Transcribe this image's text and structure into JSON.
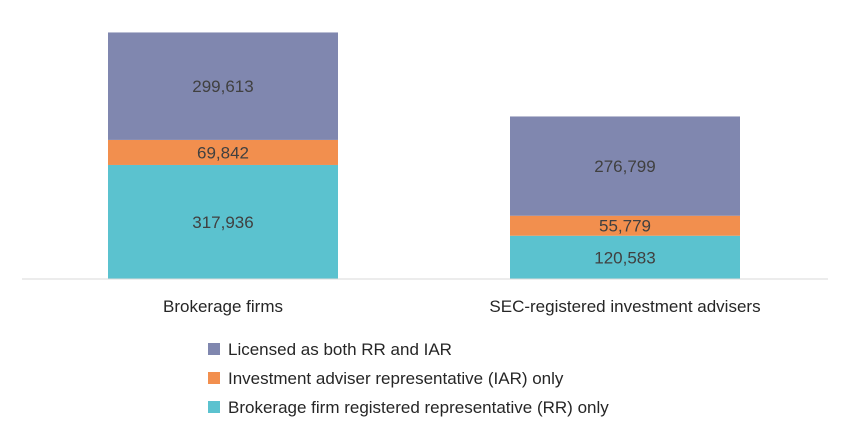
{
  "chart_data": {
    "type": "bar",
    "stacked": true,
    "categories": [
      "Brokerage firms",
      "SEC-registered investment advisers"
    ],
    "series": [
      {
        "name": "Brokerage firm registered representative (RR) only",
        "values": [
          317936,
          120583
        ],
        "color": "#5BC2CF",
        "labels": [
          "317,936",
          "120,583"
        ]
      },
      {
        "name": "Investment adviser representative (IAR) only",
        "values": [
          69842,
          55779
        ],
        "color": "#F28F4E",
        "labels": [
          "69,842",
          "55,779"
        ]
      },
      {
        "name": "Licensed as both RR and IAR",
        "values": [
          299613,
          276799
        ],
        "color": "#8087AF",
        "labels": [
          "299,613",
          "276,799"
        ]
      }
    ],
    "legend_order": [
      2,
      1,
      0
    ],
    "legend_position": "bottom",
    "ylim": [
      0,
      750000
    ],
    "y_axis_visible": false,
    "grid": false,
    "colors": {
      "axis_line": "#D9D9D9",
      "label_text": "#404040"
    }
  }
}
